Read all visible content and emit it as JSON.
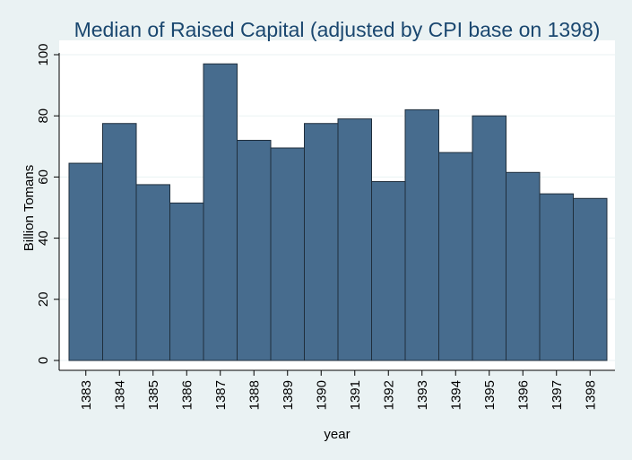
{
  "chart_data": {
    "type": "bar",
    "title": "Median of Raised Capital (adjusted by CPI base on 1398)",
    "xlabel": "year",
    "ylabel": "Billion Tomans",
    "ylim": [
      0,
      100
    ],
    "yticks": [
      0,
      20,
      40,
      60,
      80,
      100
    ],
    "grid": true,
    "categories": [
      "1383",
      "1384",
      "1385",
      "1386",
      "1387",
      "1388",
      "1389",
      "1390",
      "1391",
      "1392",
      "1393",
      "1394",
      "1395",
      "1396",
      "1397",
      "1398"
    ],
    "values": [
      64.5,
      77.5,
      57.5,
      51.5,
      97,
      72,
      69.5,
      77.5,
      79,
      58.5,
      82,
      68,
      80,
      61.5,
      54.5,
      53
    ],
    "colors": {
      "bar_fill": "#476c8e",
      "bar_stroke": "#1f2e3c",
      "plot_background": "#ffffff",
      "page_background": "#eaf2f3",
      "grid": "#eaf2f3",
      "title": "#1a476f"
    }
  }
}
